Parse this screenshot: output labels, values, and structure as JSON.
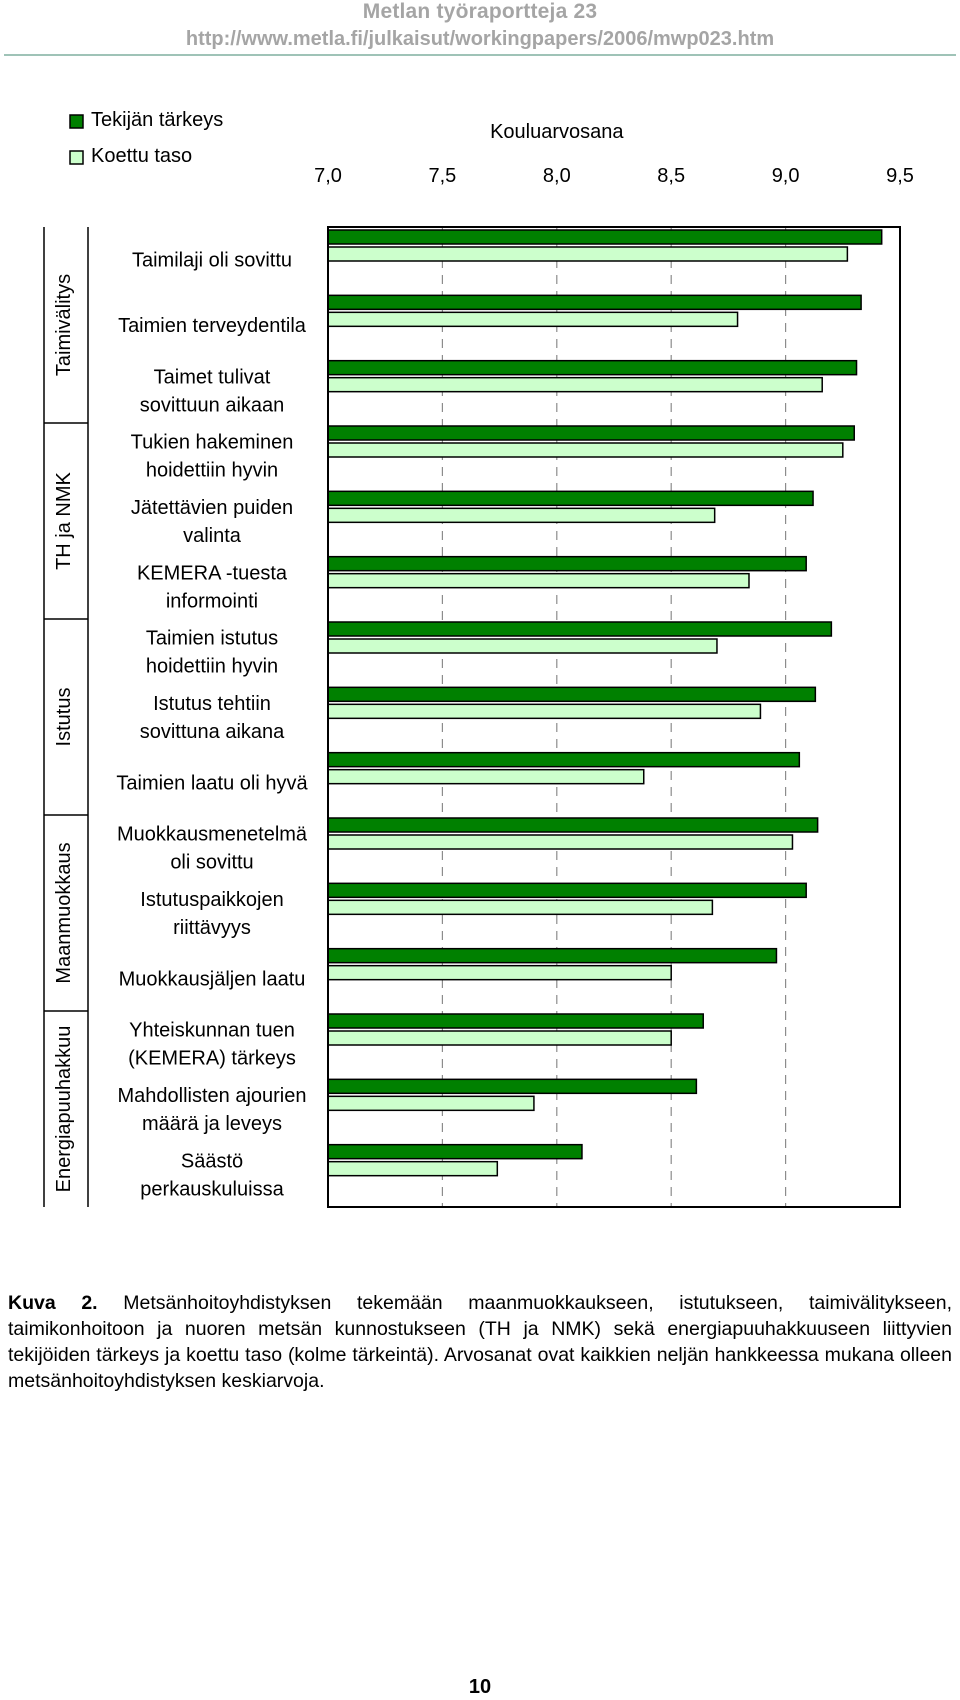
{
  "header": {
    "title": "Metlan työraportteja 23",
    "url": "http://www.metla.fi/julkaisut/workingpapers/2006/mwp023.htm"
  },
  "chart_data": {
    "type": "bar",
    "orientation": "horizontal",
    "xlabel": "Kouluarvosana",
    "xlim": [
      7.0,
      9.5
    ],
    "xticks": [
      "7,0",
      "7,5",
      "8,0",
      "8,5",
      "9,0",
      "9,5"
    ],
    "grid": "vertical dashed",
    "legend_position": "top-left",
    "categories": [
      [
        "Taimilaji oli sovittu"
      ],
      [
        "Taimien terveydentila"
      ],
      [
        "Taimet tulivat",
        "sovittuun aikaan"
      ],
      [
        "Tukien hakeminen",
        "hoidettiin hyvin"
      ],
      [
        "Jätettävien puiden",
        "valinta"
      ],
      [
        "KEMERA -tuesta",
        "informointi"
      ],
      [
        "Taimien istutus",
        "hoidettiin hyvin"
      ],
      [
        "Istutus tehtiin",
        "sovittuna aikana"
      ],
      [
        "Taimien laatu oli hyvä"
      ],
      [
        "Muokkausmenetelmä",
        "oli sovittu"
      ],
      [
        "Istutuspaikkojen",
        "riittävyys"
      ],
      [
        "Muokkausjäljen laatu"
      ],
      [
        "Yhteiskunnan tuen",
        "(KEMERA) tärkeys"
      ],
      [
        "Mahdollisten ajourien",
        "määrä ja leveys"
      ],
      [
        "Säästö",
        "perkauskuluissa"
      ]
    ],
    "groups": [
      {
        "label": "Taimivälitys",
        "from": 0,
        "to": 2
      },
      {
        "label": "TH ja NMK",
        "from": 3,
        "to": 5
      },
      {
        "label": "Istutus",
        "from": 6,
        "to": 8
      },
      {
        "label": "Maanmuokkaus",
        "from": 9,
        "to": 11
      },
      {
        "label": "Energiapuuhakkuu",
        "from": 12,
        "to": 14
      }
    ],
    "series": [
      {
        "name": "Tekijän tärkeys",
        "color": "#008000",
        "values": [
          9.42,
          9.33,
          9.31,
          9.3,
          9.12,
          9.09,
          9.2,
          9.13,
          9.06,
          9.14,
          9.09,
          8.96,
          8.64,
          8.61,
          8.11
        ]
      },
      {
        "name": "Koettu taso",
        "color": "#ccffcc",
        "values": [
          9.27,
          8.79,
          9.16,
          9.25,
          8.69,
          8.84,
          8.7,
          8.89,
          8.38,
          9.03,
          8.68,
          8.5,
          8.5,
          7.9,
          7.74
        ]
      }
    ]
  },
  "caption": {
    "label": "Kuva 2.",
    "text": "Metsänhoitoyhdistyksen tekemään maanmuokkaukseen, istutukseen, taimivälitykseen, taimikonhoitoon ja nuoren metsän kunnostukseen (TH ja NMK) sekä energiapuuhakkuuseen liittyvien tekijöiden tärkeys ja koettu taso (kolme tärkeintä). Arvosanat ovat kaikkien neljän hankkeessa mukana olleen metsänhoitoyhdistyksen keskiarvoja."
  },
  "page_number": "10"
}
